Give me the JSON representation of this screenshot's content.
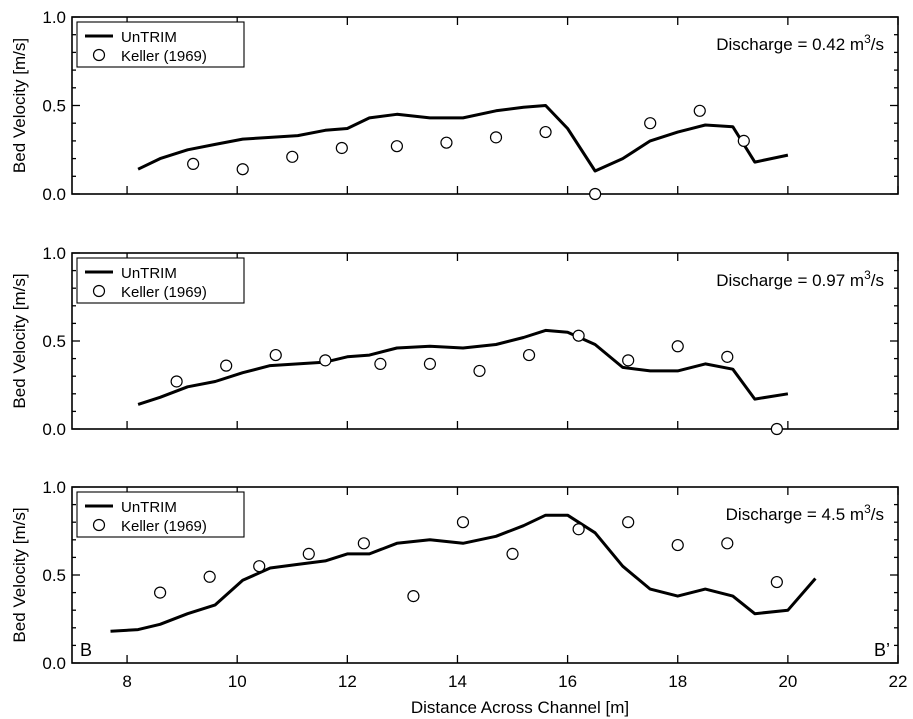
{
  "figure": {
    "xlabel": "Distance Across Channel [m]"
  },
  "chart_data": [
    {
      "type": "line",
      "ylabel": "Bed Velocity [m/s]",
      "xlim": [
        7,
        22
      ],
      "ylim": [
        0.0,
        1.0
      ],
      "xticks": [
        "8",
        "10",
        "12",
        "14",
        "16",
        "18",
        "20",
        "22"
      ],
      "yticks": [
        "0.0",
        "0.5",
        "1.0"
      ],
      "show_xtick_labels": false,
      "annotation": {
        "prefix": "Discharge = 0.42 m",
        "sup": "3",
        "suffix": "/s"
      },
      "corner_left": "",
      "corner_right": "",
      "legend": {
        "placement": "top-left",
        "line_label": "UnTRIM",
        "marker_label": "Keller (1969)"
      },
      "series": [
        {
          "name": "UnTRIM",
          "style": "line",
          "x": [
            8.2,
            8.6,
            9.1,
            9.6,
            10.1,
            10.6,
            11.1,
            11.6,
            12.0,
            12.4,
            12.9,
            13.5,
            14.1,
            14.7,
            15.2,
            15.6,
            16.0,
            16.5,
            17.0,
            17.5,
            18.0,
            18.5,
            19.0,
            19.4,
            20.0
          ],
          "y": [
            0.14,
            0.2,
            0.25,
            0.28,
            0.31,
            0.32,
            0.33,
            0.36,
            0.37,
            0.43,
            0.45,
            0.43,
            0.43,
            0.47,
            0.49,
            0.5,
            0.37,
            0.13,
            0.2,
            0.3,
            0.35,
            0.39,
            0.38,
            0.18,
            0.22
          ]
        },
        {
          "name": "Keller (1969)",
          "style": "markers",
          "x": [
            9.2,
            10.1,
            11.0,
            11.9,
            12.9,
            13.8,
            14.7,
            15.6,
            16.5,
            17.5,
            18.4,
            19.2
          ],
          "y": [
            0.17,
            0.14,
            0.21,
            0.26,
            0.27,
            0.29,
            0.32,
            0.35,
            0.0,
            0.4,
            0.47,
            0.3
          ]
        }
      ]
    },
    {
      "type": "line",
      "ylabel": "Bed Velocity [m/s]",
      "xlim": [
        7,
        22
      ],
      "ylim": [
        0.0,
        1.0
      ],
      "xticks": [
        "8",
        "10",
        "12",
        "14",
        "16",
        "18",
        "20",
        "22"
      ],
      "yticks": [
        "0.0",
        "0.5",
        "1.0"
      ],
      "show_xtick_labels": false,
      "annotation": {
        "prefix": "Discharge = 0.97 m",
        "sup": "3",
        "suffix": "/s"
      },
      "corner_left": "",
      "corner_right": "",
      "legend": {
        "placement": "top-left",
        "line_label": "UnTRIM",
        "marker_label": "Keller (1969)"
      },
      "series": [
        {
          "name": "UnTRIM",
          "style": "line",
          "x": [
            8.2,
            8.6,
            9.1,
            9.6,
            10.1,
            10.6,
            11.1,
            11.6,
            12.0,
            12.4,
            12.9,
            13.5,
            14.1,
            14.7,
            15.2,
            15.6,
            16.0,
            16.5,
            17.0,
            17.5,
            18.0,
            18.5,
            19.0,
            19.4,
            20.0
          ],
          "y": [
            0.14,
            0.18,
            0.24,
            0.27,
            0.32,
            0.36,
            0.37,
            0.38,
            0.41,
            0.42,
            0.46,
            0.47,
            0.46,
            0.48,
            0.52,
            0.56,
            0.55,
            0.48,
            0.35,
            0.33,
            0.33,
            0.37,
            0.34,
            0.17,
            0.2
          ]
        },
        {
          "name": "Keller (1969)",
          "style": "markers",
          "x": [
            8.9,
            9.8,
            10.7,
            11.6,
            12.6,
            13.5,
            14.4,
            15.3,
            16.2,
            17.1,
            18.0,
            18.9,
            19.8
          ],
          "y": [
            0.27,
            0.36,
            0.42,
            0.39,
            0.37,
            0.37,
            0.33,
            0.42,
            0.53,
            0.39,
            0.47,
            0.41,
            0.0
          ]
        }
      ]
    },
    {
      "type": "line",
      "ylabel": "Bed Velocity [m/s]",
      "xlim": [
        7,
        22
      ],
      "ylim": [
        0.0,
        1.0
      ],
      "xticks": [
        "8",
        "10",
        "12",
        "14",
        "16",
        "18",
        "20",
        "22"
      ],
      "yticks": [
        "0.0",
        "0.5",
        "1.0"
      ],
      "show_xtick_labels": true,
      "annotation": {
        "prefix": "Discharge = 4.5 m",
        "sup": "3",
        "suffix": "/s"
      },
      "corner_left": "B",
      "corner_right": "B’",
      "legend": {
        "placement": "top-left",
        "line_label": "UnTRIM",
        "marker_label": "Keller (1969)"
      },
      "series": [
        {
          "name": "UnTRIM",
          "style": "line",
          "x": [
            7.7,
            8.2,
            8.6,
            9.1,
            9.6,
            10.1,
            10.6,
            11.1,
            11.6,
            12.0,
            12.4,
            12.9,
            13.5,
            14.1,
            14.7,
            15.2,
            15.6,
            16.0,
            16.5,
            17.0,
            17.5,
            18.0,
            18.5,
            19.0,
            19.4,
            20.0,
            20.5
          ],
          "y": [
            0.18,
            0.19,
            0.22,
            0.28,
            0.33,
            0.47,
            0.54,
            0.56,
            0.58,
            0.62,
            0.62,
            0.68,
            0.7,
            0.68,
            0.72,
            0.78,
            0.84,
            0.84,
            0.74,
            0.55,
            0.42,
            0.38,
            0.42,
            0.38,
            0.28,
            0.3,
            0.48
          ]
        },
        {
          "name": "Keller (1969)",
          "style": "markers",
          "x": [
            8.6,
            9.5,
            10.4,
            11.3,
            12.3,
            13.2,
            14.1,
            15.0,
            16.2,
            17.1,
            18.0,
            18.9,
            19.8
          ],
          "y": [
            0.4,
            0.49,
            0.55,
            0.62,
            0.68,
            0.38,
            0.8,
            0.62,
            0.76,
            0.8,
            0.67,
            0.68,
            0.46
          ]
        }
      ]
    }
  ]
}
